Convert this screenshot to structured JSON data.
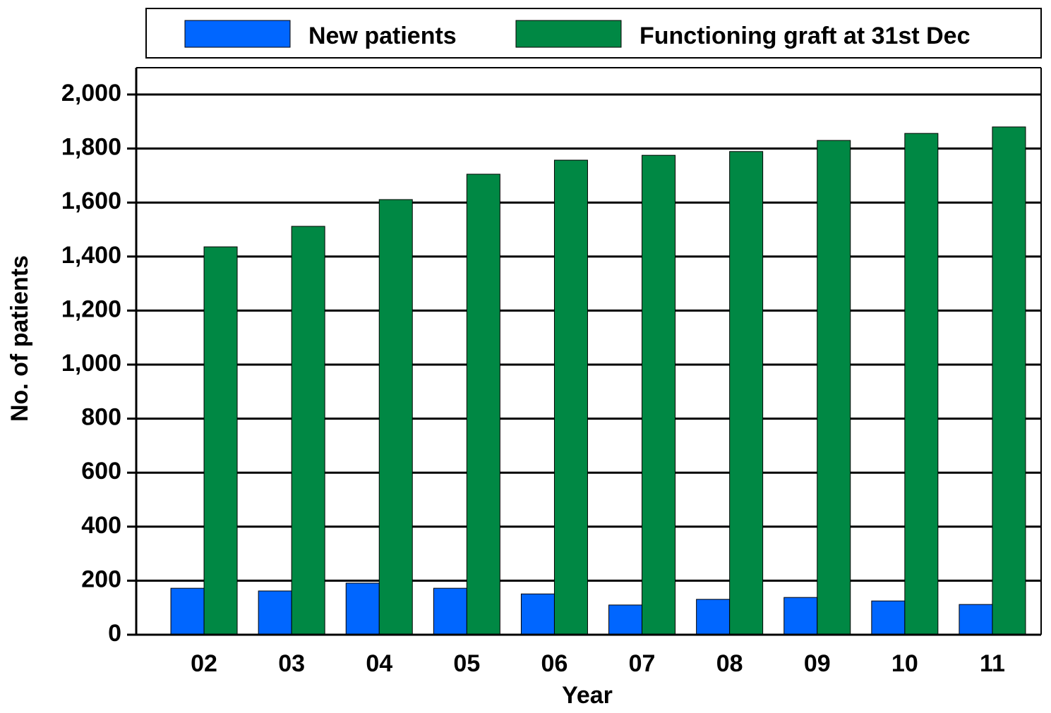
{
  "chart_data": {
    "type": "bar",
    "categories": [
      "02",
      "03",
      "04",
      "05",
      "06",
      "07",
      "08",
      "09",
      "10",
      "11"
    ],
    "series": [
      {
        "name": "New patients",
        "color": "#0066ff",
        "values": [
          172,
          162,
          191,
          172,
          151,
          110,
          131,
          138,
          125,
          112
        ]
      },
      {
        "name": "Functioning graft at 31st Dec",
        "color": "#008844",
        "values": [
          1436,
          1512,
          1611,
          1705,
          1757,
          1775,
          1789,
          1830,
          1856,
          1880
        ]
      }
    ],
    "x_label": "Year",
    "y_label": "No. of patients",
    "ylim": [
      0,
      2000
    ],
    "yticks": [
      0,
      200,
      400,
      600,
      800,
      {
        "value": 1000,
        "label": "1,000"
      },
      {
        "value": 1200,
        "label": "1,200"
      },
      {
        "value": 1400,
        "label": "1,400"
      },
      {
        "value": 1600,
        "label": "1,600"
      },
      {
        "value": 1800,
        "label": "1,800"
      },
      {
        "value": 2000,
        "label": "2,000"
      }
    ],
    "grid": true,
    "legend": "top"
  }
}
